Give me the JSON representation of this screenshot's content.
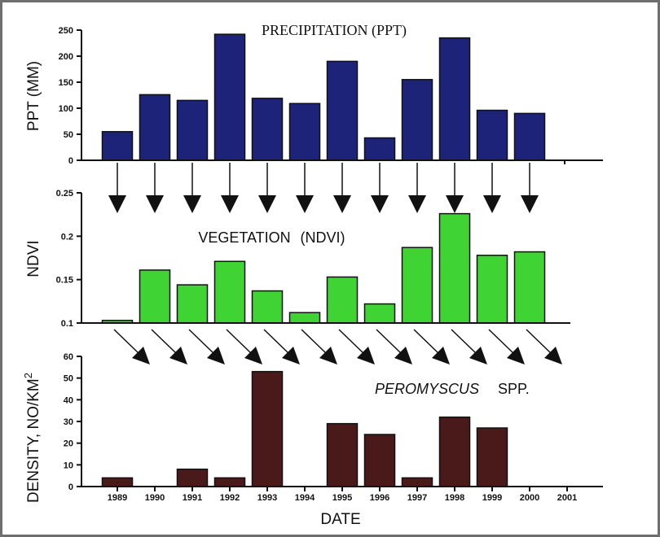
{
  "chart_data": [
    {
      "type": "bar",
      "title": "PRECIPITATION (PPT)",
      "ylabel": "PPT (MM)",
      "ylim": [
        0,
        250
      ],
      "yticks": [
        "0",
        "50",
        "100",
        "150",
        "200",
        "250"
      ],
      "categories": [
        "1989",
        "1990",
        "1991",
        "1992",
        "1993",
        "1994",
        "1995",
        "1996",
        "1997",
        "1998",
        "1999",
        "2000",
        "2001"
      ],
      "values": [
        55,
        126,
        115,
        242,
        119,
        109,
        190,
        43,
        155,
        235,
        96,
        90,
        null
      ],
      "color": "#1c2378"
    },
    {
      "type": "bar",
      "title_part1": "VEGETATION",
      "title_part2": "(NDVI)",
      "ylabel": "NDVI",
      "ylim": [
        0.1,
        0.25
      ],
      "yticks": [
        "0.1",
        "0.15",
        "0.2",
        "0.25"
      ],
      "categories": [
        "1989",
        "1990",
        "1991",
        "1992",
        "1993",
        "1994",
        "1995",
        "1996",
        "1997",
        "1998",
        "1999",
        "2000",
        "2001"
      ],
      "values": [
        0.103,
        0.161,
        0.144,
        0.171,
        0.137,
        0.112,
        0.153,
        0.122,
        0.187,
        0.226,
        0.178,
        0.182,
        null
      ],
      "color": "#3fd434"
    },
    {
      "type": "bar",
      "title_part1": "PEROMYSCUS",
      "title_part2": "SPP.",
      "ylabel": "DENSITY, NO/KM",
      "ylabel_superscript": "2",
      "xlabel": "DATE",
      "ylim": [
        0,
        60
      ],
      "yticks": [
        "0",
        "10",
        "20",
        "30",
        "40",
        "50",
        "60"
      ],
      "categories": [
        "1989",
        "1990",
        "1991",
        "1992",
        "1993",
        "1994",
        "1995",
        "1996",
        "1997",
        "1998",
        "1999",
        "2000",
        "2001"
      ],
      "values": [
        4,
        0,
        8,
        4,
        53,
        0,
        29,
        24,
        4,
        32,
        27,
        0,
        0
      ],
      "color": "#4a1a1a"
    }
  ],
  "colors": {
    "ppt_bars": "#1c2378",
    "ndvi_bars": "#3fd434",
    "density_bars": "#4a1a1a",
    "frame_border": "#6e6e6e"
  }
}
